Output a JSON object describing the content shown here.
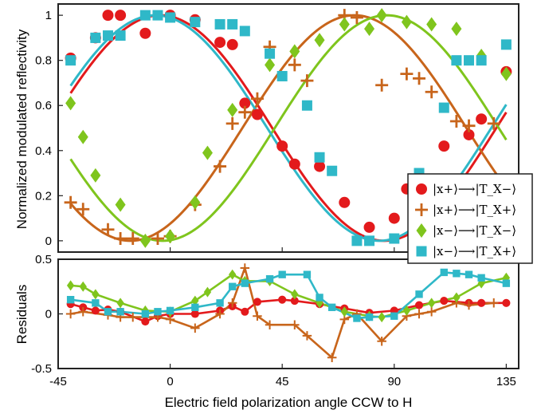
{
  "chart_data": [
    {
      "type": "scatter",
      "xlabel": "",
      "ylabel": "Normalized modulated reflectivity",
      "xlim": [
        -45,
        140
      ],
      "ylim": [
        -0.05,
        1.05
      ],
      "yticks": [
        "0",
        "0.2",
        "0.4",
        "0.6",
        "0.8",
        "1"
      ],
      "grid": false,
      "legend_position": "right",
      "series": [
        {
          "name": "|x+⟩⟶|T_X−⟩",
          "marker": "circle",
          "color": "#e31a1c",
          "points": [
            [
              -40,
              0.81
            ],
            [
              -30,
              0.9
            ],
            [
              -25,
              1.0
            ],
            [
              -20,
              1.0
            ],
            [
              -10,
              0.92
            ],
            [
              0,
              1.0
            ],
            [
              10,
              0.98
            ],
            [
              20,
              0.88
            ],
            [
              25,
              0.87
            ],
            [
              30,
              0.61
            ],
            [
              35,
              0.56
            ],
            [
              45,
              0.42
            ],
            [
              50,
              0.34
            ],
            [
              60,
              0.33
            ],
            [
              70,
              0.17
            ],
            [
              80,
              0.06
            ],
            [
              90,
              0.1
            ],
            [
              95,
              0.23
            ],
            [
              100,
              0.23
            ],
            [
              110,
              0.42
            ],
            [
              120,
              0.47
            ],
            [
              125,
              0.54
            ],
            [
              135,
              0.75
            ]
          ],
          "fit": {
            "amplitude": 0.5,
            "offset": 0.5,
            "peak_deg": -4
          }
        },
        {
          "name": "|x+⟩⟶|T_X+⟩",
          "marker": "plus",
          "color": "#c8651b",
          "points": [
            [
              -40,
              0.17
            ],
            [
              -35,
              0.14
            ],
            [
              -25,
              0.05
            ],
            [
              -20,
              0.01
            ],
            [
              -15,
              0.01
            ],
            [
              -5,
              0.01
            ],
            [
              0,
              0.02
            ],
            [
              10,
              0.16
            ],
            [
              20,
              0.33
            ],
            [
              25,
              0.52
            ],
            [
              30,
              0.57
            ],
            [
              35,
              0.63
            ],
            [
              40,
              0.86
            ],
            [
              50,
              0.78
            ],
            [
              55,
              0.71
            ],
            [
              70,
              1.0
            ],
            [
              75,
              0.99
            ],
            [
              85,
              0.69
            ],
            [
              95,
              0.74
            ],
            [
              100,
              0.72
            ],
            [
              105,
              0.66
            ],
            [
              115,
              0.53
            ],
            [
              120,
              0.51
            ],
            [
              130,
              0.52
            ]
          ],
          "fit": {
            "amplitude": 0.5,
            "offset": 0.5,
            "peak_deg": 74
          }
        },
        {
          "name": "|x−⟩⟶|T_X−⟩",
          "marker": "diamond",
          "color": "#7fc51d",
          "points": [
            [
              -40,
              0.61
            ],
            [
              -35,
              0.46
            ],
            [
              -30,
              0.29
            ],
            [
              -20,
              0.16
            ],
            [
              -10,
              0.0
            ],
            [
              0,
              0.02
            ],
            [
              10,
              0.17
            ],
            [
              15,
              0.39
            ],
            [
              25,
              0.58
            ],
            [
              40,
              0.78
            ],
            [
              50,
              0.84
            ],
            [
              60,
              0.89
            ],
            [
              70,
              0.96
            ],
            [
              80,
              0.94
            ],
            [
              85,
              1.0
            ],
            [
              95,
              0.97
            ],
            [
              105,
              0.96
            ],
            [
              115,
              0.94
            ],
            [
              125,
              0.82
            ],
            [
              135,
              0.74
            ]
          ],
          "fit": {
            "amplitude": 0.5,
            "offset": 0.5,
            "peak_deg": 87
          }
        },
        {
          "name": "|x−⟩⟶|T_X+⟩",
          "marker": "square",
          "color": "#2fb8c8",
          "points": [
            [
              -40,
              0.8
            ],
            [
              -30,
              0.9
            ],
            [
              -25,
              0.91
            ],
            [
              -20,
              0.91
            ],
            [
              -10,
              1.0
            ],
            [
              -5,
              1.0
            ],
            [
              0,
              0.99
            ],
            [
              10,
              0.97
            ],
            [
              20,
              0.96
            ],
            [
              25,
              0.96
            ],
            [
              30,
              0.93
            ],
            [
              40,
              0.83
            ],
            [
              45,
              0.73
            ],
            [
              55,
              0.6
            ],
            [
              60,
              0.37
            ],
            [
              65,
              0.31
            ],
            [
              75,
              0.0
            ],
            [
              80,
              0.0
            ],
            [
              90,
              0.01
            ],
            [
              100,
              0.3
            ],
            [
              110,
              0.59
            ],
            [
              115,
              0.8
            ],
            [
              120,
              0.8
            ],
            [
              125,
              0.8
            ],
            [
              135,
              0.87
            ]
          ],
          "fit": {
            "amplitude": 0.5,
            "offset": 0.5,
            "peak_deg": -6
          }
        }
      ]
    },
    {
      "type": "line",
      "xlabel": "Electric field polarization angle CCW to H",
      "ylabel": "Residuals",
      "xlim": [
        -45,
        140
      ],
      "ylim": [
        -0.5,
        0.5
      ],
      "xticks": [
        "-45",
        "0",
        "45",
        "90",
        "135"
      ],
      "yticks": [
        "-0.5",
        "0",
        "0.5"
      ],
      "grid": false,
      "series": [
        {
          "name": "|x+⟩⟶|T_X−⟩",
          "marker": "circle",
          "color": "#e31a1c",
          "points": [
            [
              -40,
              0.09
            ],
            [
              -35,
              0.06
            ],
            [
              -30,
              0.03
            ],
            [
              -25,
              0.04
            ],
            [
              -20,
              0.02
            ],
            [
              -10,
              -0.07
            ],
            [
              -5,
              -0.02
            ],
            [
              0,
              0.0
            ],
            [
              10,
              0.0
            ],
            [
              20,
              0.03
            ],
            [
              25,
              0.07
            ],
            [
              30,
              0.02
            ],
            [
              35,
              0.11
            ],
            [
              45,
              0.13
            ],
            [
              50,
              0.12
            ],
            [
              60,
              0.09
            ],
            [
              70,
              0.05
            ],
            [
              80,
              0.01
            ],
            [
              90,
              0.03
            ],
            [
              100,
              0.08
            ],
            [
              110,
              0.12
            ],
            [
              120,
              0.1
            ],
            [
              125,
              0.1
            ],
            [
              135,
              0.1
            ]
          ]
        },
        {
          "name": "|x+⟩⟶|T_X+⟩",
          "marker": "plus",
          "color": "#c8651b",
          "points": [
            [
              -40,
              0.0
            ],
            [
              -35,
              0.02
            ],
            [
              -25,
              -0.01
            ],
            [
              -20,
              -0.03
            ],
            [
              -15,
              -0.03
            ],
            [
              -5,
              -0.03
            ],
            [
              0,
              -0.05
            ],
            [
              10,
              -0.13
            ],
            [
              20,
              0.0
            ],
            [
              25,
              0.1
            ],
            [
              30,
              0.42
            ],
            [
              35,
              -0.02
            ],
            [
              40,
              -0.1
            ],
            [
              50,
              -0.1
            ],
            [
              55,
              -0.2
            ],
            [
              65,
              -0.4
            ],
            [
              70,
              -0.05
            ],
            [
              75,
              0.0
            ],
            [
              85,
              -0.25
            ],
            [
              95,
              -0.02
            ],
            [
              100,
              0.0
            ],
            [
              105,
              0.02
            ],
            [
              115,
              0.1
            ],
            [
              120,
              0.08
            ],
            [
              130,
              0.1
            ]
          ]
        },
        {
          "name": "|x−⟩⟶|T_X−⟩",
          "marker": "diamond",
          "color": "#7fc51d",
          "points": [
            [
              -40,
              0.26
            ],
            [
              -35,
              0.25
            ],
            [
              -30,
              0.18
            ],
            [
              -20,
              0.1
            ],
            [
              -10,
              0.03
            ],
            [
              0,
              0.02
            ],
            [
              10,
              0.12
            ],
            [
              15,
              0.2
            ],
            [
              25,
              0.36
            ],
            [
              30,
              0.3
            ],
            [
              40,
              0.3
            ],
            [
              50,
              0.18
            ],
            [
              60,
              0.1
            ],
            [
              70,
              0.02
            ],
            [
              80,
              -0.02
            ],
            [
              85,
              -0.03
            ],
            [
              95,
              0.03
            ],
            [
              105,
              0.1
            ],
            [
              115,
              0.15
            ],
            [
              125,
              0.28
            ],
            [
              135,
              0.33
            ]
          ]
        },
        {
          "name": "|x−⟩⟶|T_X+⟩",
          "marker": "square",
          "color": "#2fb8c8",
          "points": [
            [
              -40,
              0.13
            ],
            [
              -30,
              0.1
            ],
            [
              -25,
              0.02
            ],
            [
              -20,
              0.02
            ],
            [
              -10,
              0.0
            ],
            [
              -5,
              0.02
            ],
            [
              0,
              0.03
            ],
            [
              10,
              0.06
            ],
            [
              20,
              0.1
            ],
            [
              25,
              0.25
            ],
            [
              30,
              0.28
            ],
            [
              40,
              0.32
            ],
            [
              45,
              0.36
            ],
            [
              55,
              0.36
            ],
            [
              60,
              0.15
            ],
            [
              65,
              0.06
            ],
            [
              75,
              -0.04
            ],
            [
              80,
              -0.03
            ],
            [
              90,
              -0.02
            ],
            [
              100,
              0.18
            ],
            [
              110,
              0.38
            ],
            [
              115,
              0.37
            ],
            [
              120,
              0.36
            ],
            [
              125,
              0.33
            ],
            [
              135,
              0.28
            ]
          ]
        }
      ]
    }
  ]
}
